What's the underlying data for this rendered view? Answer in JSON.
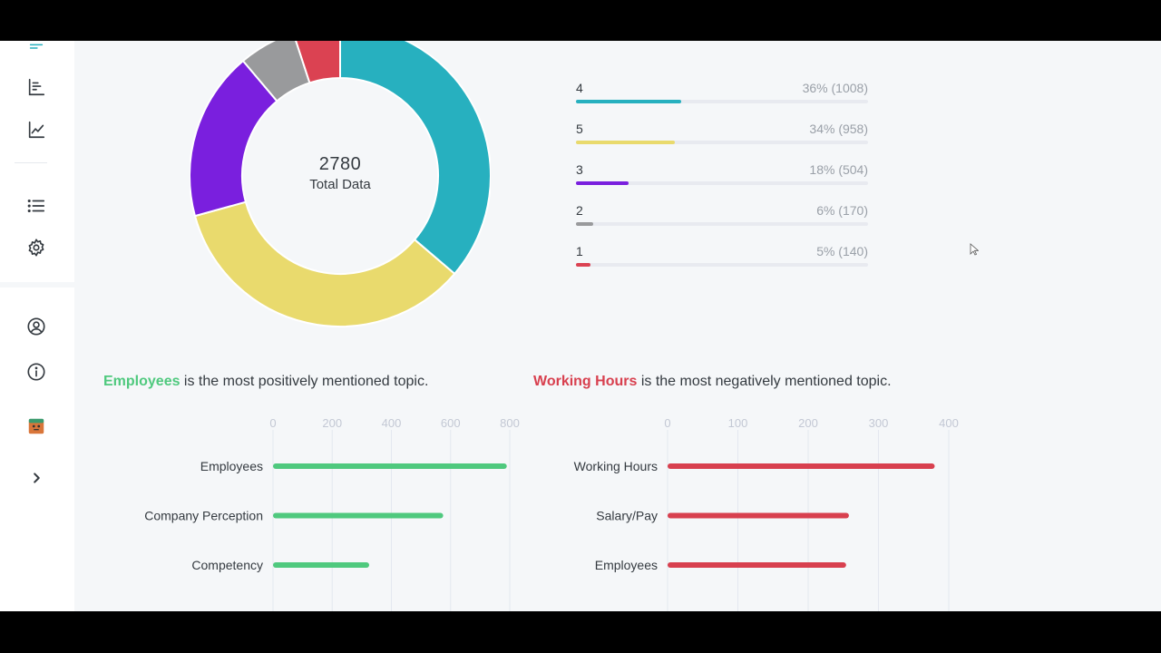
{
  "sidebar": {
    "icons": [
      {
        "name": "menu-collapse-icon"
      },
      {
        "name": "bar-chart-icon"
      },
      {
        "name": "line-chart-icon"
      },
      {
        "name": "list-icon"
      },
      {
        "name": "settings-gear-icon"
      },
      {
        "name": "user-profile-icon"
      },
      {
        "name": "info-icon"
      },
      {
        "name": "app-logo-icon"
      },
      {
        "name": "chevron-right-icon"
      }
    ]
  },
  "donut": {
    "total": "2780",
    "subtitle": "Total Data"
  },
  "legend": {
    "items": [
      {
        "label": "4",
        "value": "36% (1008)",
        "percent": 36,
        "color": "#27b0bf"
      },
      {
        "label": "5",
        "value": "34% (958)",
        "percent": 34,
        "color": "#e9da6d"
      },
      {
        "label": "3",
        "value": "18% (504)",
        "percent": 18,
        "color": "#7a1fde"
      },
      {
        "label": "2",
        "value": "6% (170)",
        "percent": 6,
        "color": "#999a9c"
      },
      {
        "label": "1",
        "value": "5% (140)",
        "percent": 5,
        "color": "#db4252"
      }
    ]
  },
  "positive": {
    "topic": "Employees",
    "text": " is the most positively mentioned topic."
  },
  "negative": {
    "topic": "Working Hours",
    "text": " is the most negatively mentioned topic."
  },
  "chart_data": [
    {
      "type": "pie",
      "categories": [
        "4",
        "5",
        "3",
        "2",
        "1"
      ],
      "values": [
        1008,
        958,
        504,
        170,
        140
      ],
      "colors": [
        "#27b0bf",
        "#e9da6d",
        "#7a1fde",
        "#999a9c",
        "#db4252"
      ],
      "title": "2780",
      "subtitle": "Total Data"
    },
    {
      "type": "bar",
      "orientation": "horizontal",
      "categories": [
        "Employees",
        "Company Perception",
        "Competency"
      ],
      "values": [
        790,
        575,
        325
      ],
      "ticks": [
        "0",
        "200",
        "400",
        "600",
        "800"
      ],
      "xlim": [
        0,
        800
      ],
      "color": "#4fc97e",
      "grid": true
    },
    {
      "type": "bar",
      "orientation": "horizontal",
      "categories": [
        "Working Hours",
        "Salary/Pay",
        "Employees"
      ],
      "values": [
        380,
        258,
        254
      ],
      "ticks": [
        "0",
        "100",
        "200",
        "300",
        "400"
      ],
      "xlim": [
        0,
        400
      ],
      "color": "#d8404f",
      "grid": true
    }
  ]
}
